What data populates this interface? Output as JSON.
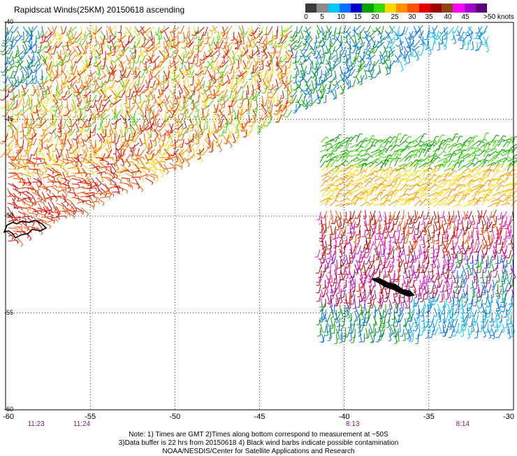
{
  "title": "Rapidscat Winds(25KM) 20150618 ascending",
  "legend": {
    "labels": [
      "0",
      "5",
      "10",
      "15",
      "20",
      "25",
      "30",
      "35",
      "40",
      "45",
      ">50 knots"
    ],
    "colors": [
      "#3a3a3a",
      "#8a8a8a",
      "#00c8ff",
      "#0070ff",
      "#0000c8",
      "#00a000",
      "#38d800",
      "#ffd800",
      "#ff9000",
      "#ff5000",
      "#e00000",
      "#a00000",
      "#8b4513",
      "#ff00ff",
      "#a000c8",
      "#5a0078"
    ]
  },
  "x_ticks": [
    "-60",
    "-55",
    "-50",
    "-45",
    "-40",
    "-35",
    "-30"
  ],
  "y_ticks": [
    "-40",
    "-45",
    "-50",
    "-55",
    "-60"
  ],
  "times": [
    {
      "label": "11:23",
      "lon": -58.2
    },
    {
      "label": "11:24",
      "lon": -55.5
    },
    {
      "label": "8:13",
      "lon": -39.5
    },
    {
      "label": "8:14",
      "lon": -33
    }
  ],
  "notes": [
    "Note: 1) Times are GMT 2)Times along bottom correspond to measurement at ~50S",
    "3)Data buffer is 22 hrs from 20150618 4) Black wind barbs indicate possible contamination",
    "NOAA/NESDIS/Center for Satellite Applications and Research"
  ]
}
